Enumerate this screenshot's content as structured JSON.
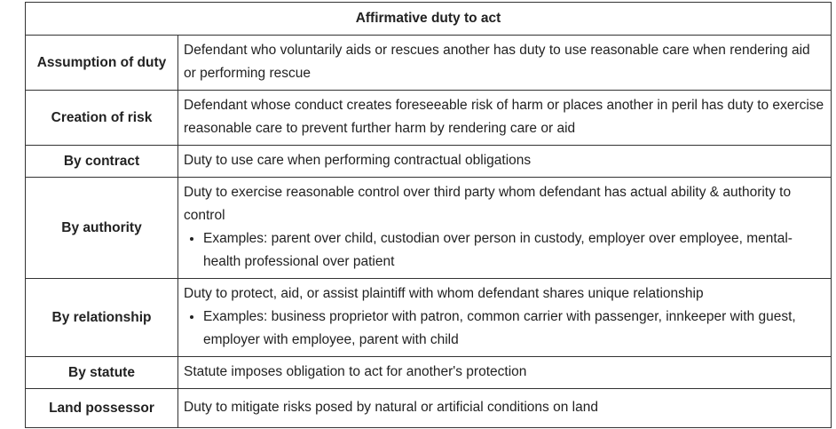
{
  "table": {
    "title": "Affirmative duty to act",
    "rows": [
      {
        "label": "Assumption of duty",
        "text": "Defendant who voluntarily aids or rescues another has duty to use reasonable care when rendering aid or performing rescue"
      },
      {
        "label": "Creation of risk",
        "text": "Defendant whose conduct creates foreseeable risk of harm or places another in peril has duty to exercise reasonable care to prevent further harm by rendering care or aid"
      },
      {
        "label": "By contract",
        "text": "Duty to use care when performing contractual obligations"
      },
      {
        "label": "By authority",
        "text": "Duty to exercise reasonable control over third party whom defendant has actual ability & authority to control",
        "example": "Examples:  parent over child, custodian over person in custody, employer over employee, mental-health professional over patient"
      },
      {
        "label": "By relationship",
        "text": "Duty to protect, aid, or assist plaintiff with whom defendant shares unique relationship",
        "example": "Examples:  business proprietor with patron, common carrier with passenger, innkeeper with guest, employer with employee, parent with child"
      },
      {
        "label": "By statute",
        "text": "Statute imposes obligation to act for another's protection"
      },
      {
        "label": "Land possessor",
        "text": "Duty to mitigate risks posed by natural or artificial conditions on land"
      }
    ]
  }
}
